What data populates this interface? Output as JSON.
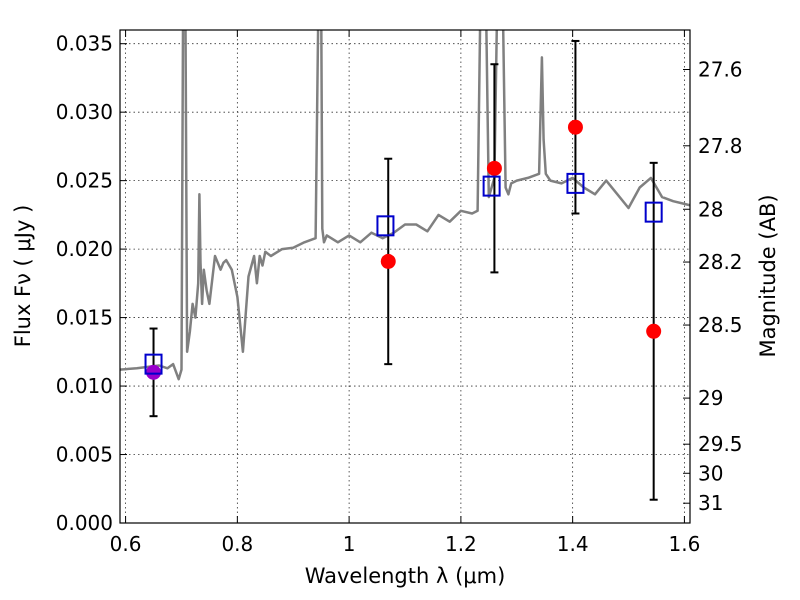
{
  "chart_data": {
    "type": "scatter",
    "xlabel": "Wavelength  λ (μm)",
    "ylabel": "Flux  Fν ( μJy )",
    "ylabel_right": "Magnitude (AB)",
    "xlim": [
      0.59,
      1.61
    ],
    "ylim": [
      0,
      0.036
    ],
    "x_ticks": [
      0.6,
      0.8,
      1.0,
      1.2,
      1.4,
      1.6
    ],
    "x_tick_labels": [
      "0.6",
      "0.8",
      "1",
      "1.2",
      "1.4",
      "1.6"
    ],
    "y_ticks": [
      0,
      0.005,
      0.01,
      0.015,
      0.02,
      0.025,
      0.03,
      0.035
    ],
    "y_tick_labels": [
      "0.000",
      "0.005",
      "0.010",
      "0.015",
      "0.020",
      "0.025",
      "0.030",
      "0.035"
    ],
    "right_ticks": [
      27.6,
      27.8,
      28,
      28.2,
      28.5,
      29,
      29.5,
      30,
      31
    ],
    "right_tick_labels": [
      "27.6",
      "27.8",
      "28",
      "28.2",
      "28.5",
      "29",
      "29.5",
      "30",
      "31"
    ],
    "grid": true,
    "colors": {
      "model": "#808080",
      "observed": "#ff0000",
      "observed_first": "#9900cc",
      "model_band": "#0000cc",
      "errorbar": "#000000"
    },
    "observed": [
      {
        "x": 0.65,
        "y": 0.011,
        "yerr_low": 0.0032,
        "yerr_high": 0.0032
      },
      {
        "x": 1.07,
        "y": 0.0191,
        "yerr_low": 0.0075,
        "yerr_high": 0.0075
      },
      {
        "x": 1.26,
        "y": 0.0259,
        "yerr_low": 0.0076,
        "yerr_high": 0.0076
      },
      {
        "x": 1.405,
        "y": 0.0289,
        "yerr_low": 0.0063,
        "yerr_high": 0.0063
      },
      {
        "x": 1.545,
        "y": 0.014,
        "yerr_low": 0.0123,
        "yerr_high": 0.0123
      }
    ],
    "model_band_flux": [
      {
        "x": 0.65,
        "y": 0.0116
      },
      {
        "x": 1.065,
        "y": 0.0217
      },
      {
        "x": 1.255,
        "y": 0.0246
      },
      {
        "x": 1.405,
        "y": 0.0248
      },
      {
        "x": 1.545,
        "y": 0.0227
      }
    ],
    "model_spectrum": {
      "x": [
        0.59,
        0.62,
        0.64,
        0.66,
        0.675,
        0.685,
        0.695,
        0.7,
        0.703,
        0.705,
        0.707,
        0.71,
        0.715,
        0.72,
        0.725,
        0.73,
        0.732,
        0.734,
        0.737,
        0.74,
        0.745,
        0.75,
        0.76,
        0.765,
        0.77,
        0.775,
        0.78,
        0.79,
        0.8,
        0.81,
        0.82,
        0.83,
        0.835,
        0.84,
        0.845,
        0.85,
        0.86,
        0.88,
        0.9,
        0.92,
        0.94,
        0.945,
        0.948,
        0.95,
        0.952,
        0.955,
        0.96,
        0.98,
        1.0,
        1.02,
        1.04,
        1.06,
        1.08,
        1.1,
        1.12,
        1.14,
        1.16,
        1.18,
        1.2,
        1.22,
        1.23,
        1.235,
        1.24,
        1.245,
        1.25,
        1.255,
        1.26,
        1.265,
        1.27,
        1.275,
        1.28,
        1.285,
        1.29,
        1.3,
        1.32,
        1.34,
        1.345,
        1.348,
        1.352,
        1.36,
        1.38,
        1.4,
        1.42,
        1.44,
        1.46,
        1.48,
        1.5,
        1.52,
        1.54,
        1.56,
        1.58,
        1.6,
        1.61
      ],
      "y": [
        0.0112,
        0.0113,
        0.0114,
        0.0115,
        0.0113,
        0.0116,
        0.0105,
        0.0112,
        0.038,
        0.045,
        0.038,
        0.0125,
        0.014,
        0.016,
        0.015,
        0.0175,
        0.024,
        0.019,
        0.016,
        0.0185,
        0.017,
        0.016,
        0.0195,
        0.019,
        0.0185,
        0.019,
        0.0192,
        0.0185,
        0.0165,
        0.0125,
        0.018,
        0.0195,
        0.0175,
        0.0195,
        0.0188,
        0.0198,
        0.0195,
        0.02,
        0.0201,
        0.0205,
        0.0208,
        0.038,
        0.045,
        0.038,
        0.0215,
        0.0205,
        0.021,
        0.0205,
        0.021,
        0.0205,
        0.0212,
        0.0208,
        0.0212,
        0.0218,
        0.0218,
        0.0213,
        0.0225,
        0.022,
        0.0228,
        0.0226,
        0.0228,
        0.038,
        0.045,
        0.038,
        0.0238,
        0.0245,
        0.0252,
        0.038,
        0.045,
        0.038,
        0.0245,
        0.024,
        0.0248,
        0.025,
        0.0252,
        0.0255,
        0.034,
        0.028,
        0.0255,
        0.025,
        0.0248,
        0.0252,
        0.0245,
        0.024,
        0.025,
        0.024,
        0.023,
        0.0245,
        0.0252,
        0.0238,
        0.0235,
        0.0233,
        0.0232
      ]
    }
  }
}
